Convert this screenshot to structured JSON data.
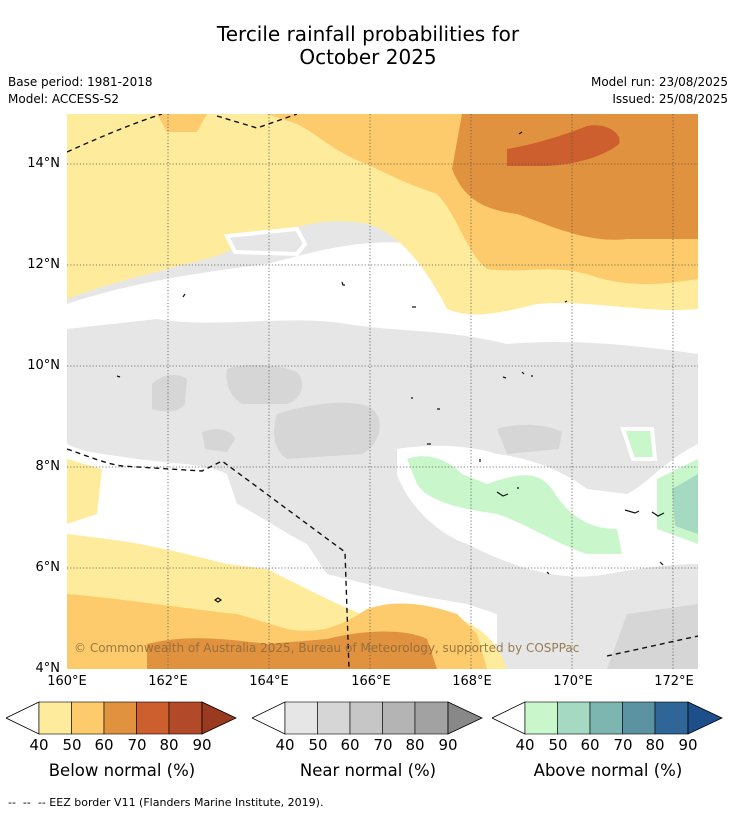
{
  "title": {
    "line1": "Tercile rainfall probabilities for",
    "line2": "October 2025"
  },
  "meta": {
    "base_period": "Base period: 1981-2018",
    "model": "Model: ACCESS-S2",
    "model_run": "Model run: 23/08/2025",
    "issued": "Issued: 25/08/2025"
  },
  "map": {
    "lon_range": [
      160,
      172.5
    ],
    "lat_range": [
      4,
      15
    ],
    "lat_labels": [
      "14°N",
      "12°N",
      "10°N",
      "8°N",
      "6°N",
      "4°N"
    ],
    "lon_labels": [
      "160°E",
      "162°E",
      "164°E",
      "166°E",
      "168°E",
      "170°E",
      "172°E"
    ],
    "copyright": "© Commonwealth of Australia 2025, Bureau of Meteorology, supported by COSPPac"
  },
  "legends": [
    {
      "caption": "Below normal (%)",
      "ticks": [
        "40",
        "50",
        "60",
        "70",
        "80",
        "90"
      ],
      "colors": [
        "#ffeb9c",
        "#fdcb6b",
        "#e1923f",
        "#cd5f2e",
        "#b24a2a",
        "#9a3a1f"
      ]
    },
    {
      "caption": "Near normal (%)",
      "ticks": [
        "40",
        "50",
        "60",
        "70",
        "80",
        "90"
      ],
      "colors": [
        "#e6e6e6",
        "#d6d6d6",
        "#c6c6c6",
        "#b4b4b4",
        "#a2a2a2",
        "#888888"
      ]
    },
    {
      "caption": "Above normal (%)",
      "ticks": [
        "40",
        "50",
        "60",
        "70",
        "80",
        "90"
      ],
      "colors": [
        "#c9f6ca",
        "#a5d9c2",
        "#7db6b0",
        "#5b93a2",
        "#2f6597",
        "#1e4f8a"
      ]
    }
  ],
  "eez_note": "--  --  -- EEZ border V11 (Flanders Marine Institute, 2019)."
}
